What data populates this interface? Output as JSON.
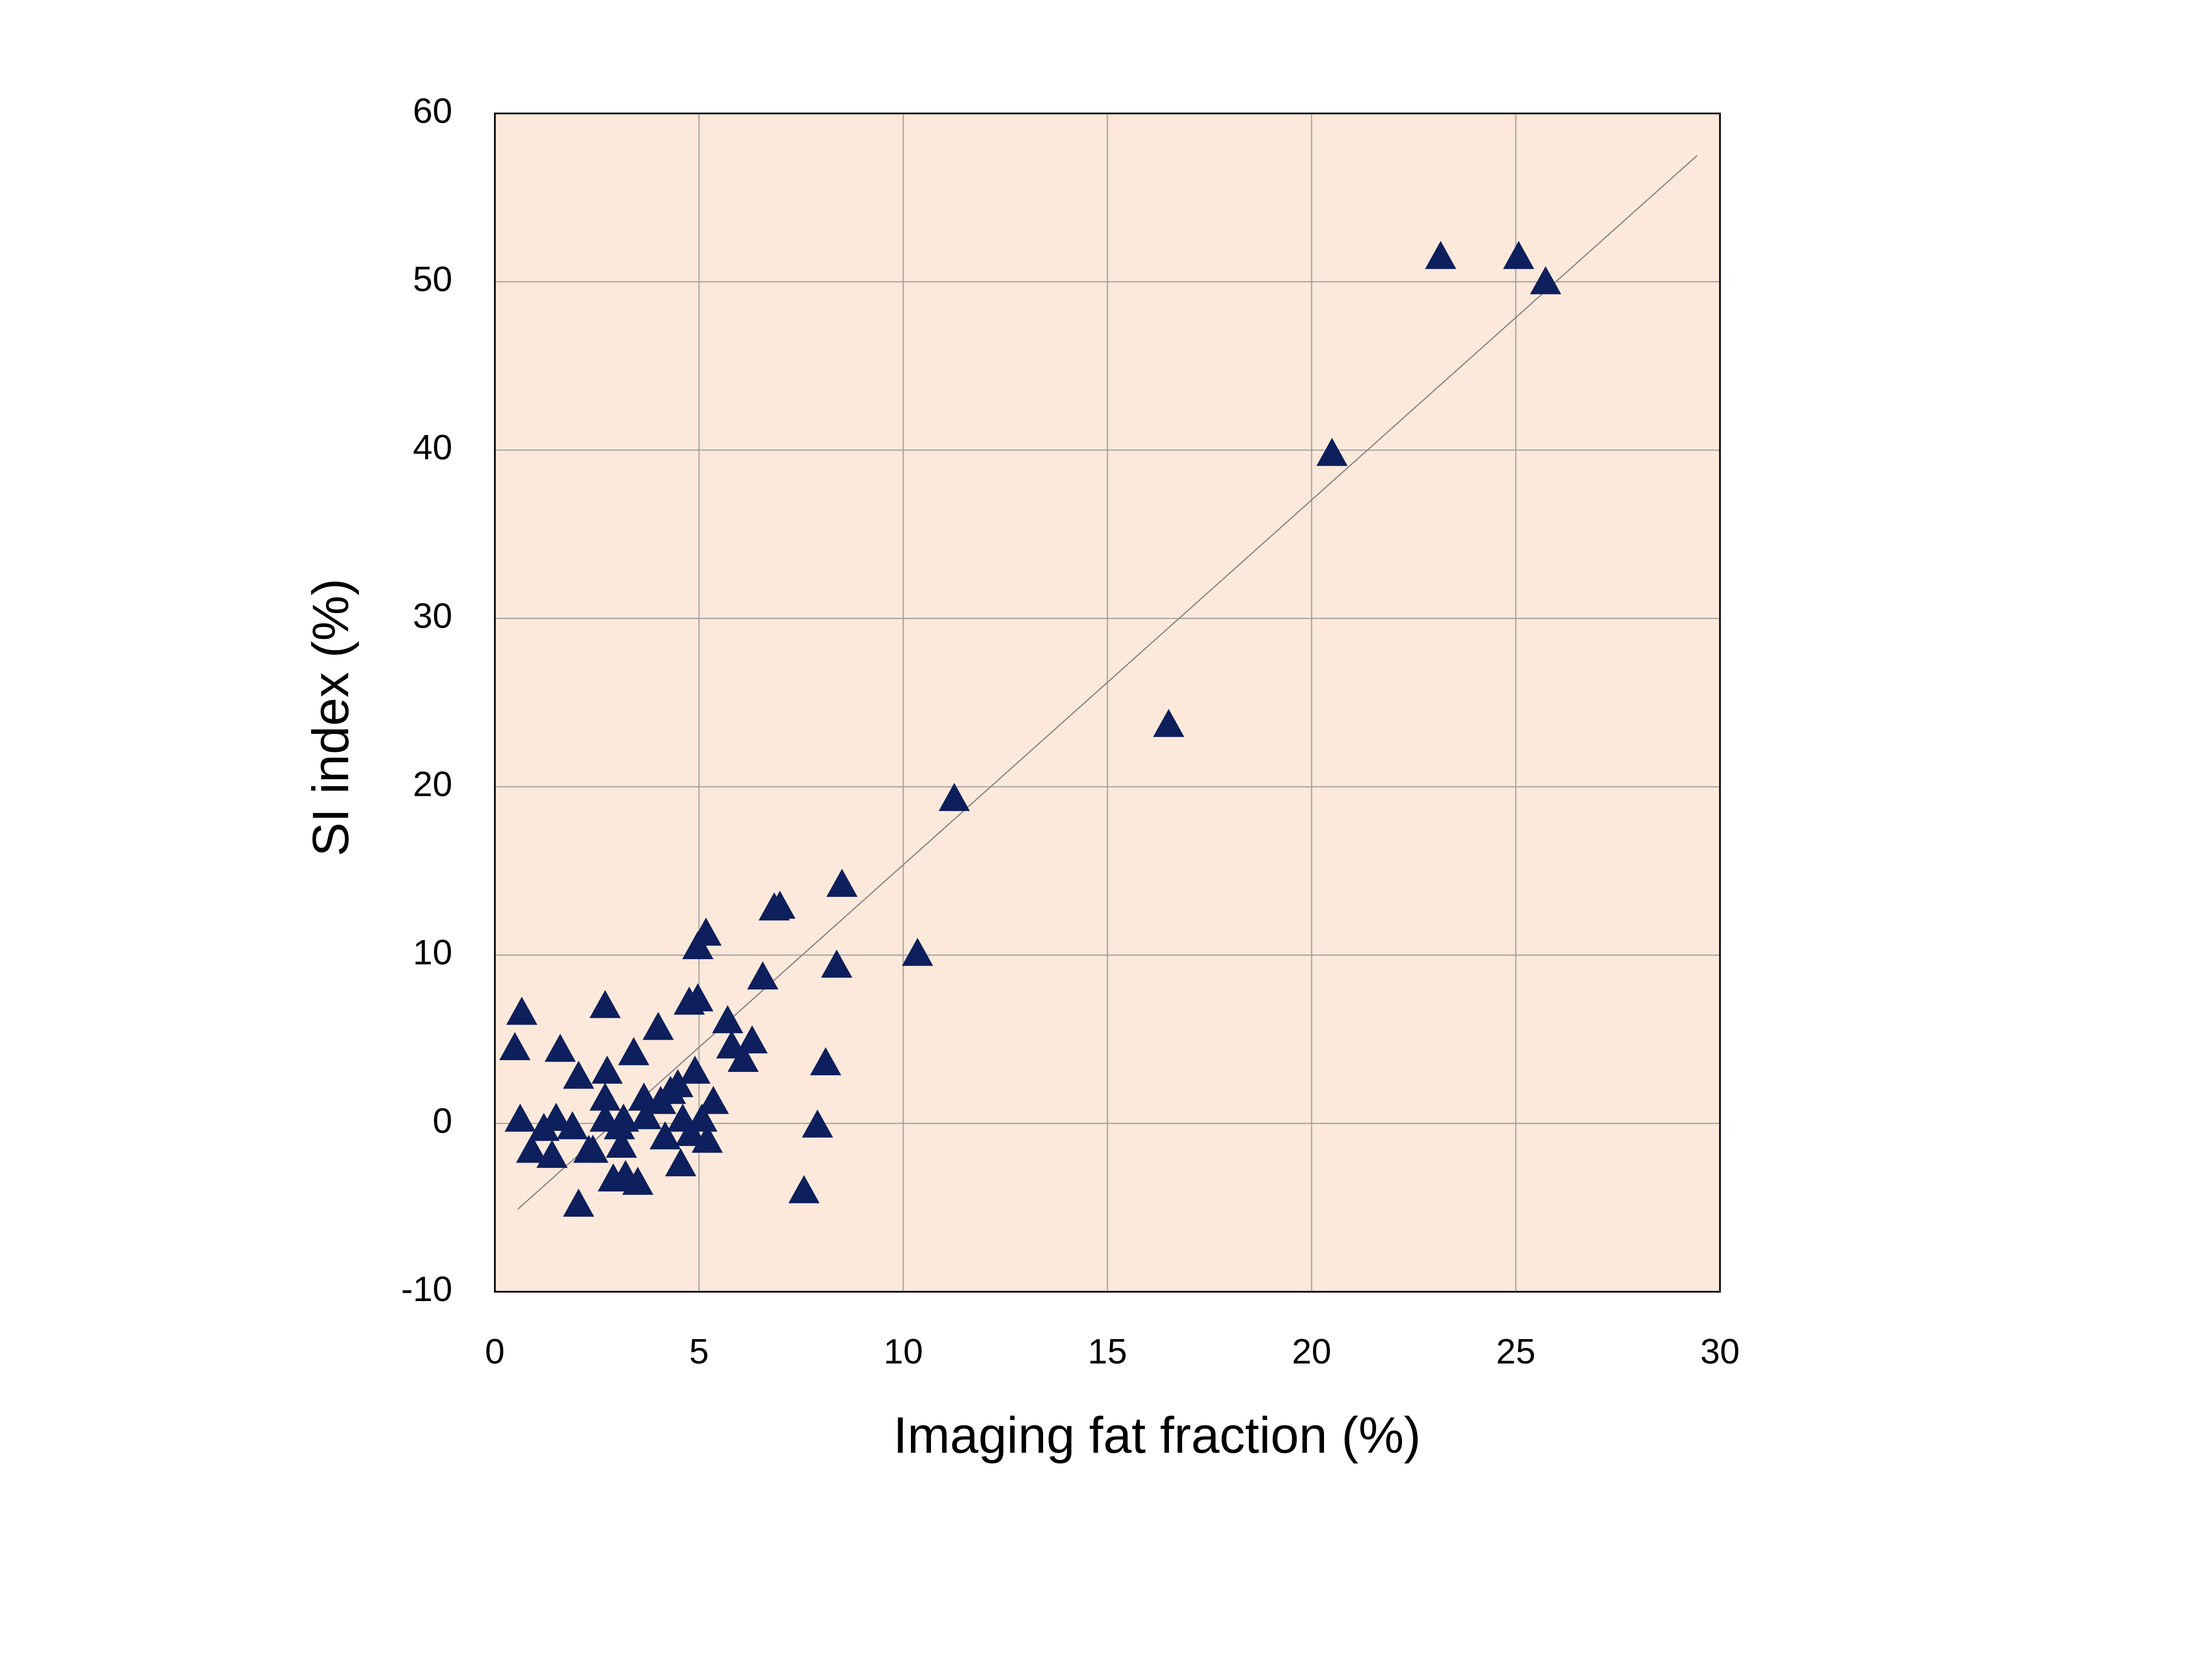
{
  "chart_data": {
    "type": "scatter",
    "x_label": "Imaging fat fraction (%)",
    "y_label": "SI  index (%)",
    "xlim": [
      0,
      30
    ],
    "xticks": [
      0,
      5,
      10,
      15,
      20,
      25,
      30
    ],
    "ylim": [
      -10,
      60
    ],
    "yticks": [
      -10,
      0,
      10,
      20,
      30,
      40,
      50,
      60
    ],
    "grid": true,
    "background": "#fce9db",
    "marker": "triangle",
    "series": [
      {
        "color": "#0d1f5c",
        "x": [
          0.66,
          0.49,
          0.62,
          0.9,
          1.2,
          1.4,
          1.5,
          1.6,
          1.9,
          2.05,
          2.05,
          2.3,
          2.4,
          2.7,
          2.75,
          2.7,
          2.7,
          2.9,
          3.05,
          3.1,
          3.2,
          3.15,
          3.4,
          3.5,
          3.65,
          3.7,
          4.0,
          4.06,
          4.17,
          4.3,
          4.48,
          4.55,
          4.6,
          4.76,
          4.8,
          4.9,
          4.97,
          4.97,
          5.07,
          5.17,
          5.2,
          5.35,
          5.7,
          5.8,
          6.08,
          6.3,
          6.56,
          6.84,
          6.98,
          7.57,
          7.9,
          8.1,
          8.37,
          8.5,
          10.35,
          11.25,
          16.5,
          20.5,
          23.16,
          25.07,
          25.73
        ],
        "values": [
          6.6,
          4.5,
          0.25,
          -1.6,
          -0.3,
          -1.9,
          0.3,
          4.4,
          -0.2,
          2.8,
          -4.8,
          -1.6,
          -1.6,
          7.0,
          3.1,
          1.5,
          0.25,
          -3.3,
          -0.2,
          -1.3,
          -3.1,
          0.25,
          4.2,
          -3.5,
          1.5,
          0.4,
          5.7,
          1.3,
          -0.8,
          1.9,
          2.3,
          -2.4,
          0.25,
          7.2,
          -0.6,
          3.1,
          7.4,
          10.5,
          0.25,
          11.3,
          -1.0,
          1.3,
          6.1,
          4.6,
          3.8,
          4.9,
          8.7,
          12.8,
          12.9,
          -4.0,
          -0.1,
          3.6,
          9.4,
          14.2,
          10.1,
          19.3,
          23.7,
          39.8,
          51.5,
          51.5,
          50.0
        ]
      }
    ],
    "trendline": {
      "color": "#808080",
      "x": [
        0.56,
        29.44
      ],
      "values": [
        -5.1,
        57.5
      ]
    }
  }
}
